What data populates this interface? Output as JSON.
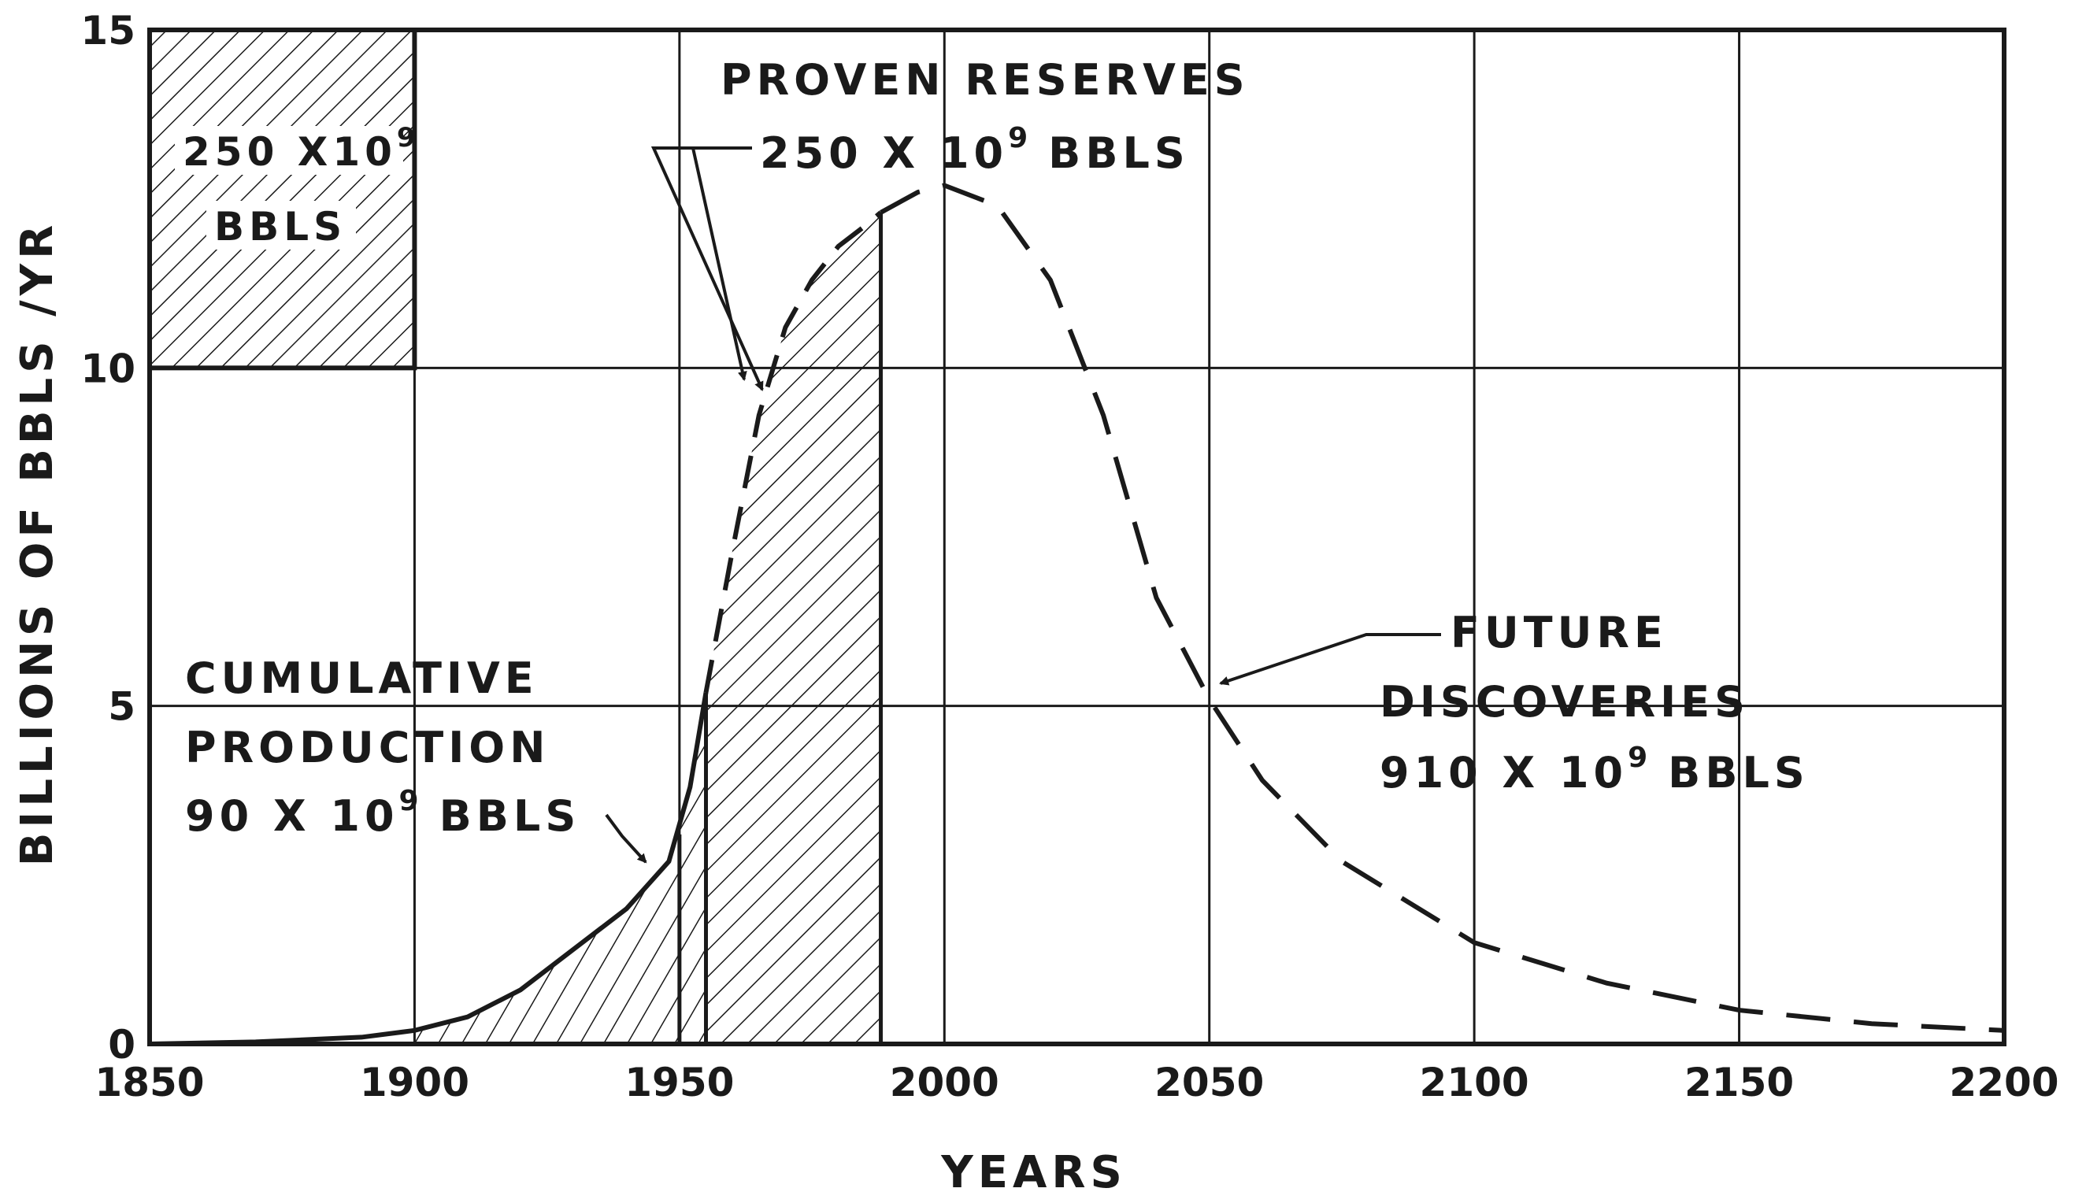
{
  "chart_data": {
    "type": "line",
    "title": "",
    "xlabel": "YEARS",
    "ylabel": "BILLIONS OF BBLS /YR",
    "xlim": [
      1850,
      2200
    ],
    "ylim": [
      0,
      15
    ],
    "grid": true,
    "x_ticks": [
      "1850",
      "1900",
      "1950",
      "2000",
      "2050",
      "2100",
      "2150",
      "2200"
    ],
    "y_ticks": [
      "0",
      "5",
      "10",
      "15"
    ],
    "series": [
      {
        "name": "Cumulative production (historical)",
        "style": "solid, hatched area",
        "x": [
          1850,
          1870,
          1890,
          1900,
          1910,
          1920,
          1930,
          1940,
          1948,
          1952,
          1955
        ],
        "y": [
          0,
          0.03,
          0.1,
          0.2,
          0.4,
          0.8,
          1.4,
          2.0,
          2.7,
          3.8,
          5.2
        ]
      },
      {
        "name": "Proven reserves",
        "style": "dashed top, hatched area",
        "x": [
          1955,
          1960,
          1965,
          1970,
          1975,
          1980,
          1985,
          1988
        ],
        "y": [
          5.2,
          7.3,
          9.3,
          10.6,
          11.3,
          11.8,
          12.1,
          12.3
        ]
      },
      {
        "name": "Future discoveries",
        "style": "dashed",
        "x": [
          1988,
          1995,
          2000,
          2010,
          2020,
          2030,
          2040,
          2050,
          2060,
          2075,
          2100,
          2125,
          2150,
          2175,
          2200
        ],
        "y": [
          12.3,
          12.6,
          12.7,
          12.4,
          11.3,
          9.3,
          6.6,
          5.1,
          3.9,
          2.7,
          1.5,
          0.9,
          0.5,
          0.3,
          0.2
        ]
      }
    ],
    "legend_box": {
      "range_x": [
        1850,
        1900
      ],
      "range_y": [
        10,
        15
      ],
      "line1": "250 X10",
      "sup": "9",
      "line2": "BBLS"
    },
    "annotations": {
      "proven_title": "PROVEN RESERVES",
      "proven_value": "250 X 10",
      "proven_value_sup": "9",
      "proven_value_unit": "BBLS",
      "cum_line1": "CUMULATIVE",
      "cum_line2": "PRODUCTION",
      "cum_value": "90 X 10",
      "cum_value_sup": "9",
      "cum_value_unit": "BBLS",
      "future_line1": "FUTURE",
      "future_line2": "DISCOVERIES",
      "future_value": "910 X 10",
      "future_value_sup": "9",
      "future_value_unit": "BBLS"
    }
  }
}
